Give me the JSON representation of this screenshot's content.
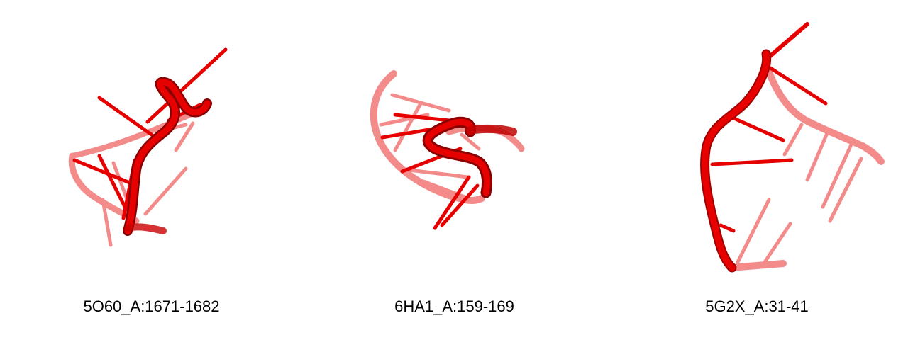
{
  "figure": {
    "structures": [
      {
        "label": "5O60_A:1671-1682",
        "render": "rna-cartoon",
        "color": "#e60000"
      },
      {
        "label": "6HA1_A:159-169",
        "render": "rna-cartoon",
        "color": "#e60000"
      },
      {
        "label": "5G2X_A:31-41",
        "render": "rna-cartoon",
        "color": "#e60000"
      }
    ]
  }
}
